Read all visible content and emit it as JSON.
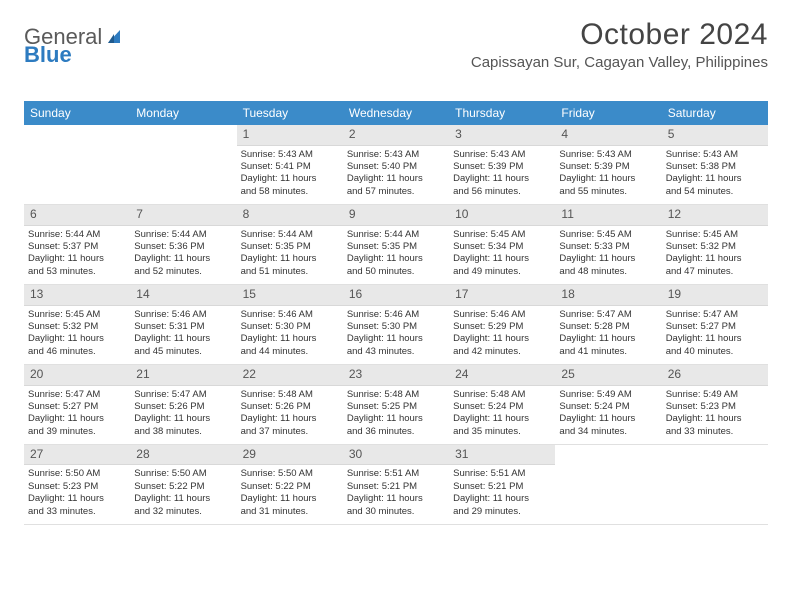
{
  "brand": {
    "part1": "General",
    "part2": "Blue"
  },
  "title": "October 2024",
  "location": "Capissayan Sur, Cagayan Valley, Philippines",
  "colors": {
    "header_bg": "#3b8bc9",
    "header_text": "#ffffff",
    "date_bg": "#e8e8e8",
    "page_bg": "#ffffff",
    "text": "#333333"
  },
  "dayNames": [
    "Sunday",
    "Monday",
    "Tuesday",
    "Wednesday",
    "Thursday",
    "Friday",
    "Saturday"
  ],
  "weeks": [
    [
      null,
      null,
      {
        "d": "1",
        "sr": "5:43 AM",
        "ss": "5:41 PM",
        "dl1": "11 hours",
        "dl2": "and 58 minutes."
      },
      {
        "d": "2",
        "sr": "5:43 AM",
        "ss": "5:40 PM",
        "dl1": "11 hours",
        "dl2": "and 57 minutes."
      },
      {
        "d": "3",
        "sr": "5:43 AM",
        "ss": "5:39 PM",
        "dl1": "11 hours",
        "dl2": "and 56 minutes."
      },
      {
        "d": "4",
        "sr": "5:43 AM",
        "ss": "5:39 PM",
        "dl1": "11 hours",
        "dl2": "and 55 minutes."
      },
      {
        "d": "5",
        "sr": "5:43 AM",
        "ss": "5:38 PM",
        "dl1": "11 hours",
        "dl2": "and 54 minutes."
      }
    ],
    [
      {
        "d": "6",
        "sr": "5:44 AM",
        "ss": "5:37 PM",
        "dl1": "11 hours",
        "dl2": "and 53 minutes."
      },
      {
        "d": "7",
        "sr": "5:44 AM",
        "ss": "5:36 PM",
        "dl1": "11 hours",
        "dl2": "and 52 minutes."
      },
      {
        "d": "8",
        "sr": "5:44 AM",
        "ss": "5:35 PM",
        "dl1": "11 hours",
        "dl2": "and 51 minutes."
      },
      {
        "d": "9",
        "sr": "5:44 AM",
        "ss": "5:35 PM",
        "dl1": "11 hours",
        "dl2": "and 50 minutes."
      },
      {
        "d": "10",
        "sr": "5:45 AM",
        "ss": "5:34 PM",
        "dl1": "11 hours",
        "dl2": "and 49 minutes."
      },
      {
        "d": "11",
        "sr": "5:45 AM",
        "ss": "5:33 PM",
        "dl1": "11 hours",
        "dl2": "and 48 minutes."
      },
      {
        "d": "12",
        "sr": "5:45 AM",
        "ss": "5:32 PM",
        "dl1": "11 hours",
        "dl2": "and 47 minutes."
      }
    ],
    [
      {
        "d": "13",
        "sr": "5:45 AM",
        "ss": "5:32 PM",
        "dl1": "11 hours",
        "dl2": "and 46 minutes."
      },
      {
        "d": "14",
        "sr": "5:46 AM",
        "ss": "5:31 PM",
        "dl1": "11 hours",
        "dl2": "and 45 minutes."
      },
      {
        "d": "15",
        "sr": "5:46 AM",
        "ss": "5:30 PM",
        "dl1": "11 hours",
        "dl2": "and 44 minutes."
      },
      {
        "d": "16",
        "sr": "5:46 AM",
        "ss": "5:30 PM",
        "dl1": "11 hours",
        "dl2": "and 43 minutes."
      },
      {
        "d": "17",
        "sr": "5:46 AM",
        "ss": "5:29 PM",
        "dl1": "11 hours",
        "dl2": "and 42 minutes."
      },
      {
        "d": "18",
        "sr": "5:47 AM",
        "ss": "5:28 PM",
        "dl1": "11 hours",
        "dl2": "and 41 minutes."
      },
      {
        "d": "19",
        "sr": "5:47 AM",
        "ss": "5:27 PM",
        "dl1": "11 hours",
        "dl2": "and 40 minutes."
      }
    ],
    [
      {
        "d": "20",
        "sr": "5:47 AM",
        "ss": "5:27 PM",
        "dl1": "11 hours",
        "dl2": "and 39 minutes."
      },
      {
        "d": "21",
        "sr": "5:47 AM",
        "ss": "5:26 PM",
        "dl1": "11 hours",
        "dl2": "and 38 minutes."
      },
      {
        "d": "22",
        "sr": "5:48 AM",
        "ss": "5:26 PM",
        "dl1": "11 hours",
        "dl2": "and 37 minutes."
      },
      {
        "d": "23",
        "sr": "5:48 AM",
        "ss": "5:25 PM",
        "dl1": "11 hours",
        "dl2": "and 36 minutes."
      },
      {
        "d": "24",
        "sr": "5:48 AM",
        "ss": "5:24 PM",
        "dl1": "11 hours",
        "dl2": "and 35 minutes."
      },
      {
        "d": "25",
        "sr": "5:49 AM",
        "ss": "5:24 PM",
        "dl1": "11 hours",
        "dl2": "and 34 minutes."
      },
      {
        "d": "26",
        "sr": "5:49 AM",
        "ss": "5:23 PM",
        "dl1": "11 hours",
        "dl2": "and 33 minutes."
      }
    ],
    [
      {
        "d": "27",
        "sr": "5:50 AM",
        "ss": "5:23 PM",
        "dl1": "11 hours",
        "dl2": "and 33 minutes."
      },
      {
        "d": "28",
        "sr": "5:50 AM",
        "ss": "5:22 PM",
        "dl1": "11 hours",
        "dl2": "and 32 minutes."
      },
      {
        "d": "29",
        "sr": "5:50 AM",
        "ss": "5:22 PM",
        "dl1": "11 hours",
        "dl2": "and 31 minutes."
      },
      {
        "d": "30",
        "sr": "5:51 AM",
        "ss": "5:21 PM",
        "dl1": "11 hours",
        "dl2": "and 30 minutes."
      },
      {
        "d": "31",
        "sr": "5:51 AM",
        "ss": "5:21 PM",
        "dl1": "11 hours",
        "dl2": "and 29 minutes."
      },
      null,
      null
    ]
  ],
  "labels": {
    "sunrise": "Sunrise:",
    "sunset": "Sunset:",
    "daylight": "Daylight:"
  }
}
